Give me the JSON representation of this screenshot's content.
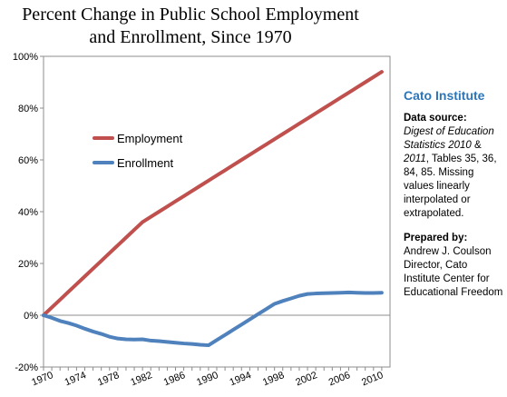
{
  "chart_data": {
    "type": "line",
    "title": [
      "Percent Change in Public School Employment",
      "and Enrollment, Since 1970"
    ],
    "xlabel": "",
    "ylabel": "",
    "xlim": [
      1970,
      2012
    ],
    "ylim": [
      -20,
      100
    ],
    "x_ticks": [
      1970,
      1974,
      1978,
      1982,
      1986,
      1990,
      1994,
      1998,
      2002,
      2006,
      2010
    ],
    "y_ticks": [
      -20,
      0,
      20,
      40,
      60,
      80,
      100
    ],
    "y_tick_labels": [
      "-20%",
      "0%",
      "20%",
      "40%",
      "60%",
      "80%",
      "100%"
    ],
    "grid": false,
    "legend": "left-middle",
    "x": [
      1970,
      1971,
      1972,
      1973,
      1974,
      1975,
      1976,
      1977,
      1978,
      1979,
      1980,
      1981,
      1982,
      1983,
      1984,
      1985,
      1986,
      1987,
      1988,
      1989,
      1990,
      1991,
      1992,
      1993,
      1994,
      1995,
      1996,
      1997,
      1998,
      1999,
      2000,
      2001,
      2002,
      2003,
      2004,
      2005,
      2006,
      2007,
      2008,
      2009,
      2010,
      2011
    ],
    "series": [
      {
        "name": "Employment",
        "color": "#c0504d",
        "values": [
          0,
          3,
          6,
          9,
          12,
          15,
          18,
          21,
          24,
          27,
          30,
          33,
          36,
          38,
          40,
          42,
          44,
          46,
          48,
          50,
          52,
          54,
          56,
          58,
          60,
          62,
          64,
          66,
          68,
          70,
          72,
          74,
          76,
          78,
          80,
          82,
          84,
          86,
          88,
          90,
          92,
          94
        ]
      },
      {
        "name": "Enrollment",
        "color": "#4f81bd",
        "values": [
          0,
          -1,
          -2.2,
          -3,
          -4,
          -5.2,
          -6.3,
          -7.2,
          -8.3,
          -9,
          -9.3,
          -9.4,
          -9.3,
          -9.8,
          -10,
          -10.3,
          -10.6,
          -10.9,
          -11.1,
          -11.4,
          -11.6,
          -9.6,
          -7.6,
          -5.6,
          -3.6,
          -1.6,
          0.4,
          2.4,
          4.4,
          5.5,
          6.5,
          7.5,
          8.2,
          8.4,
          8.5,
          8.6,
          8.7,
          8.8,
          8.7,
          8.6,
          8.6,
          8.7
        ]
      }
    ]
  },
  "sidebar": {
    "org": "Cato Institute",
    "source_heading": "Data source:",
    "source_italic_1": "Digest of Education Statistics 2010",
    "source_amp": " & ",
    "source_italic_2": "2011",
    "source_rest": ", Tables 35, 36, 84, 85.  Missing values linearly interpolated or extrapolated.",
    "prepared_heading": "Prepared by:",
    "prepared_lines": [
      "Andrew J. Coulson",
      "Director, Cato Institute Center for Educational Freedom"
    ]
  }
}
